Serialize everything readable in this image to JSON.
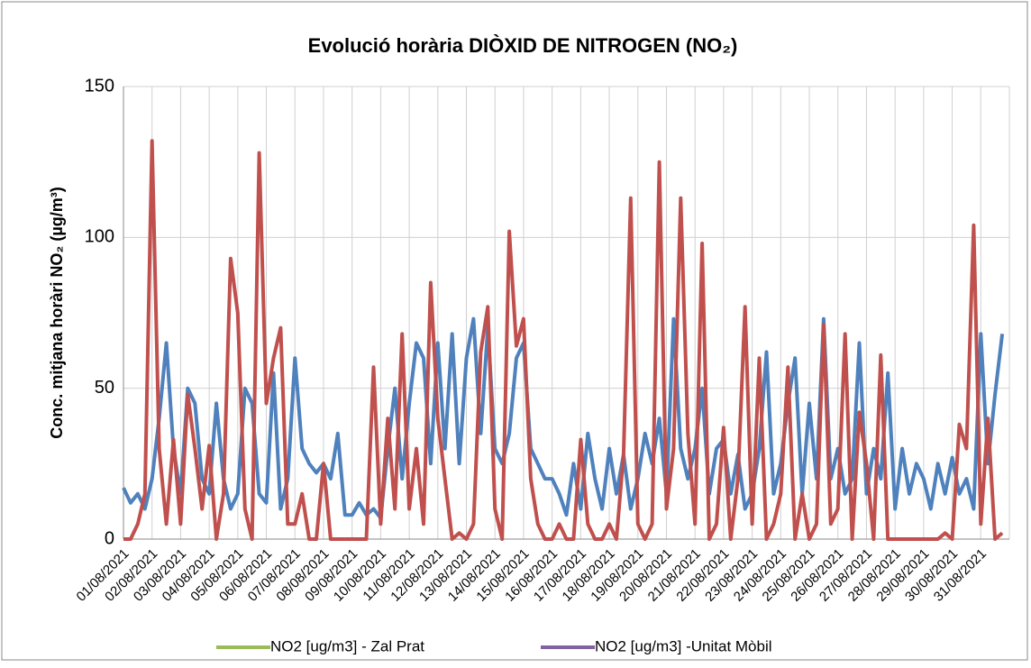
{
  "chart_data": {
    "type": "line",
    "title": "Evolució horària DIÒXID DE NITROGEN (NO₂)",
    "y_label": "Conc. mitjana horàri NO₂ (µg/m³)",
    "categories": [
      "01/08/2021",
      null,
      null,
      null,
      "02/08/2021",
      null,
      null,
      null,
      "03/08/2021",
      null,
      null,
      null,
      "04/08/2021",
      null,
      null,
      null,
      "05/08/2021",
      null,
      null,
      null,
      "06/08/2021",
      null,
      null,
      null,
      "07/08/2021",
      null,
      null,
      null,
      "08/08/2021",
      null,
      null,
      null,
      "09/08/2021",
      null,
      null,
      null,
      "10/08/2021",
      null,
      null,
      null,
      "11/08/2021",
      null,
      null,
      null,
      "12/08/2021",
      null,
      null,
      null,
      "13/08/2021",
      null,
      null,
      null,
      "14/08/2021",
      null,
      null,
      null,
      "15/08/2021",
      null,
      null,
      null,
      "16/08/2021",
      null,
      null,
      null,
      "17/08/2021",
      null,
      null,
      null,
      "18/08/2021",
      null,
      null,
      null,
      "19/08/2021",
      null,
      null,
      null,
      "20/08/2021",
      null,
      null,
      null,
      "21/08/2021",
      null,
      null,
      null,
      "22/08/2021",
      null,
      null,
      null,
      "23/08/2021",
      null,
      null,
      null,
      "24/08/2021",
      null,
      null,
      null,
      "25/08/2021",
      null,
      null,
      null,
      "26/08/2021",
      null,
      null,
      null,
      "27/08/2021",
      null,
      null,
      null,
      "28/08/2021",
      null,
      null,
      null,
      "29/08/2021",
      null,
      null,
      null,
      "30/08/2021",
      null,
      null,
      null,
      "31/08/2021",
      null,
      null,
      null
    ],
    "series": [
      {
        "name": "NO2 [ug/m3] - Zal Prat",
        "color": "#4f81bd",
        "legend_color": "#9bbb59",
        "values": [
          17,
          12,
          15,
          10,
          20,
          40,
          65,
          30,
          15,
          50,
          45,
          20,
          15,
          45,
          20,
          10,
          15,
          50,
          45,
          15,
          12,
          55,
          10,
          20,
          60,
          30,
          25,
          22,
          25,
          20,
          35,
          8,
          8,
          12,
          8,
          10,
          7,
          30,
          50,
          20,
          45,
          65,
          60,
          25,
          65,
          30,
          68,
          25,
          60,
          73,
          35,
          70,
          30,
          25,
          35,
          60,
          65,
          30,
          25,
          20,
          20,
          15,
          8,
          25,
          10,
          35,
          20,
          10,
          30,
          15,
          28,
          10,
          20,
          35,
          25,
          40,
          15,
          73,
          30,
          20,
          30,
          50,
          15,
          30,
          33,
          15,
          28,
          10,
          15,
          30,
          62,
          15,
          25,
          45,
          60,
          15,
          45,
          20,
          73,
          20,
          30,
          15,
          20,
          65,
          15,
          30,
          20,
          55,
          10,
          30,
          15,
          25,
          20,
          10,
          25,
          15,
          27,
          15,
          20,
          10,
          68,
          25,
          48,
          68
        ]
      },
      {
        "name": "NO2 [ug/m3] -Unitat Mòbil",
        "color": "#c0504d",
        "legend_color": "#8064a2",
        "values": [
          0,
          0,
          5,
          15,
          132,
          30,
          5,
          33,
          5,
          48,
          30,
          10,
          31,
          0,
          15,
          93,
          75,
          10,
          0,
          128,
          45,
          60,
          70,
          5,
          5,
          15,
          0,
          0,
          25,
          0,
          0,
          0,
          0,
          0,
          0,
          57,
          5,
          40,
          10,
          68,
          10,
          30,
          5,
          85,
          40,
          20,
          0,
          2,
          0,
          5,
          62,
          77,
          10,
          0,
          102,
          64,
          73,
          20,
          5,
          0,
          0,
          5,
          0,
          0,
          33,
          5,
          0,
          0,
          5,
          0,
          28,
          113,
          5,
          0,
          5,
          125,
          10,
          30,
          113,
          35,
          5,
          98,
          0,
          5,
          37,
          0,
          20,
          77,
          5,
          60,
          0,
          5,
          15,
          57,
          0,
          15,
          0,
          5,
          71,
          5,
          10,
          68,
          0,
          42,
          25,
          0,
          61,
          0,
          0,
          0,
          0,
          0,
          0,
          0,
          0,
          2,
          0,
          38,
          30,
          104,
          5,
          40,
          0,
          2
        ]
      }
    ],
    "ylim": [
      0,
      150
    ],
    "yticks": [
      0,
      50,
      100,
      150
    ],
    "grid": true
  }
}
